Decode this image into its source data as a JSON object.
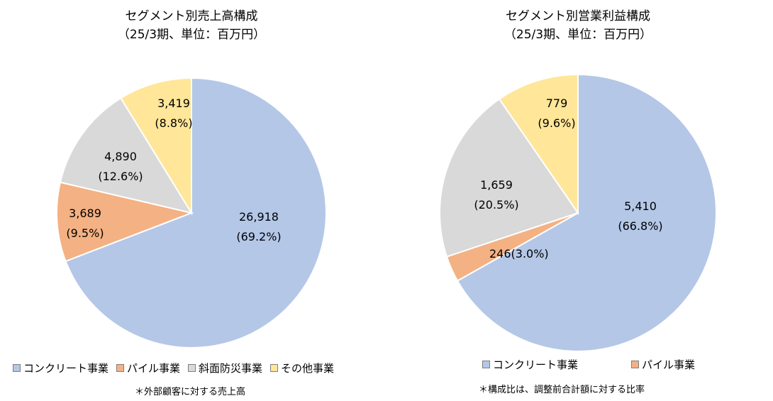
{
  "colors": {
    "concrete": "#b4c7e7",
    "pile": "#f4b183",
    "slope": "#d9d9d9",
    "other": "#ffe699",
    "border": "#ffffff"
  },
  "chart_data": [
    {
      "type": "pie",
      "title": "セグメント別売上高構成",
      "subtitle": "（25/3期、単位：百万円）",
      "legend_placement": "bottom",
      "slices": [
        {
          "key": "concrete",
          "label": "コンクリート事業",
          "value": 26918,
          "value_text": "26,918",
          "pct_text": "(69.2%)"
        },
        {
          "key": "pile",
          "label": "パイル事業",
          "value": 3689,
          "value_text": "3,689",
          "pct_text": "(9.5%)"
        },
        {
          "key": "slope",
          "label": "斜面防災事業",
          "value": 4890,
          "value_text": "4,890",
          "pct_text": "(12.6%)"
        },
        {
          "key": "other",
          "label": "その他事業",
          "value": 3419,
          "value_text": "3,419",
          "pct_text": "(8.8%)"
        }
      ],
      "footnote": "＊外部顧客に対する売上高"
    },
    {
      "type": "pie",
      "title": "セグメント別営業利益構成",
      "subtitle": "（25/3期、単位：百万円）",
      "legend_placement": "bottom",
      "slices": [
        {
          "key": "concrete",
          "label": "コンクリート事業",
          "value": 5410,
          "value_text": "5,410",
          "pct_text": "(66.8%)"
        },
        {
          "key": "pile",
          "label": "パイル事業",
          "value": 246,
          "value_text": "246",
          "pct_text": "(3.0%)"
        },
        {
          "key": "slope",
          "label": "",
          "value": 1659,
          "value_text": "1,659",
          "pct_text": "(20.5%)"
        },
        {
          "key": "other",
          "label": "",
          "value": 779,
          "value_text": "779",
          "pct_text": "(9.6%)"
        }
      ],
      "footnote": "＊構成比は、調整前合計額に対する比率"
    }
  ]
}
